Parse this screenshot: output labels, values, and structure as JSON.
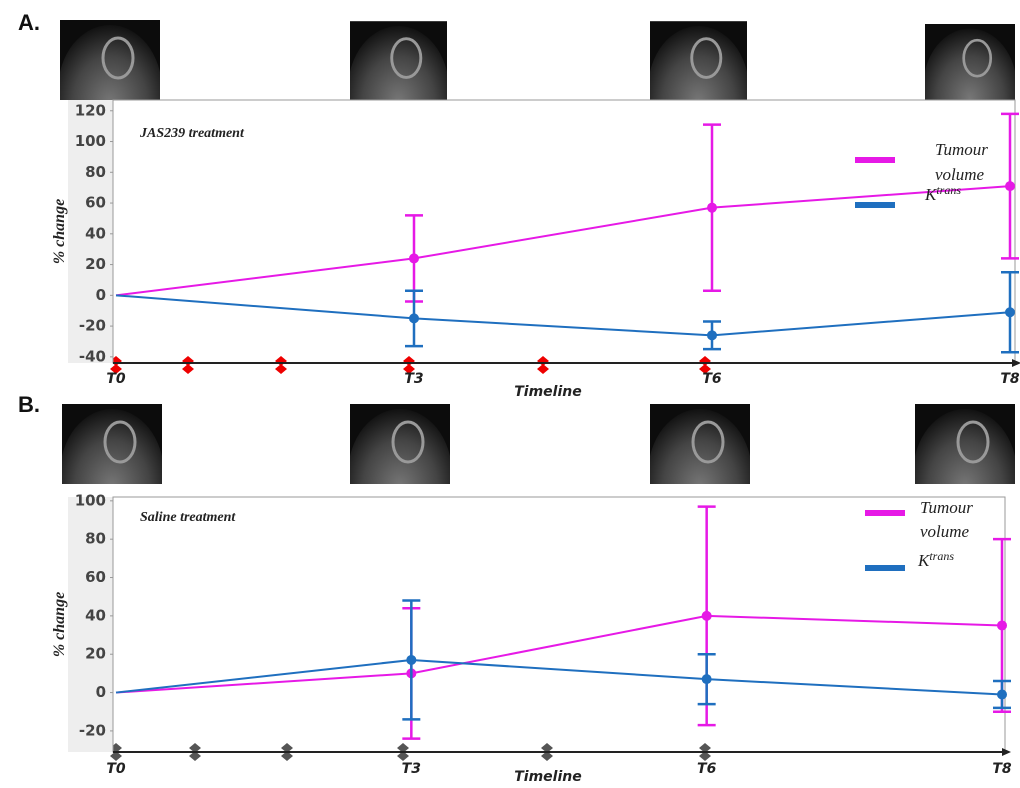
{
  "chart_data": [
    {
      "type": "line",
      "panel": "A.",
      "title": "JAS239 treatment",
      "xlabel": "Timeline",
      "ylabel": "% change",
      "categories": [
        "T0",
        "T3",
        "T6",
        "T8"
      ],
      "series": [
        {
          "name": "Tumour volume",
          "color": "#e619e6",
          "values": [
            0,
            24,
            57,
            71
          ],
          "errors": [
            null,
            28,
            54,
            47
          ]
        },
        {
          "name": "Ktrans",
          "color": "#1f6fbf",
          "values": [
            0,
            -15,
            -26,
            -11
          ],
          "errors": [
            null,
            18,
            9,
            26
          ]
        }
      ],
      "ylim": [
        -44,
        127
      ],
      "yticks": [
        -40,
        -20,
        0,
        20,
        40,
        60,
        80,
        100,
        120
      ]
    },
    {
      "type": "line",
      "panel": "B.",
      "title": "Saline treatment",
      "xlabel": "Timeline",
      "ylabel": "% change",
      "categories": [
        "T0",
        "T3",
        "T6",
        "T8"
      ],
      "series": [
        {
          "name": "Tumour volume",
          "color": "#e619e6",
          "values": [
            0,
            10,
            40,
            35
          ],
          "errors": [
            null,
            34,
            57,
            45
          ]
        },
        {
          "name": "Ktrans",
          "color": "#1f6fbf",
          "values": [
            0,
            17,
            7,
            -1
          ],
          "errors": [
            null,
            31,
            13,
            7
          ]
        }
      ],
      "ylim": [
        -31,
        102
      ],
      "yticks": [
        -20,
        0,
        20,
        40,
        60,
        80,
        100
      ]
    }
  ]
}
